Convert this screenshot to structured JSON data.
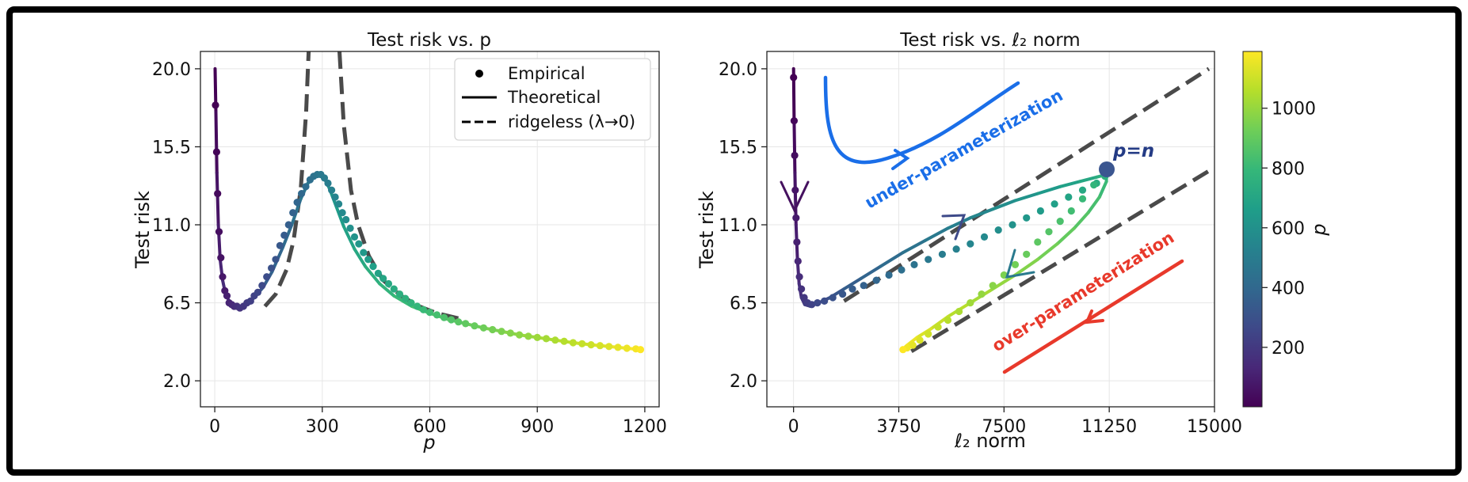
{
  "chart_data": [
    {
      "type": "line",
      "title": "Test risk vs. p",
      "xlabel": "p",
      "ylabel": "Test risk",
      "xlim": [
        -40,
        1240
      ],
      "ylim": [
        0.5,
        21
      ],
      "xticks": [
        0,
        300,
        600,
        900,
        1200
      ],
      "xtick_labels": [
        "0",
        "300",
        "600",
        "900",
        "1200"
      ],
      "yticks": [
        2.0,
        6.5,
        11.0,
        15.5,
        20.0
      ],
      "ytick_labels": [
        "2.0",
        "6.5",
        "11.0",
        "15.5",
        "20.0"
      ],
      "grid": true,
      "legend": {
        "placement": "top-right",
        "entries": [
          "Empirical",
          "Theoretical",
          "ridgeless (λ→0)"
        ]
      },
      "series": [
        {
          "name": "Theoretical",
          "style": "solid",
          "x": [
            1,
            3,
            6,
            10,
            15,
            22,
            30,
            40,
            55,
            70,
            90,
            110,
            135,
            160,
            190,
            215,
            240,
            260,
            280,
            292,
            305,
            320,
            340,
            360,
            390,
            420,
            460,
            500,
            550,
            600,
            650,
            700,
            750,
            800,
            850,
            900,
            950,
            1000,
            1050,
            1100,
            1150,
            1190
          ],
          "y": [
            20.0,
            17.5,
            14.0,
            11.0,
            9.0,
            7.8,
            7.0,
            6.6,
            6.3,
            6.2,
            6.4,
            6.8,
            7.4,
            8.3,
            9.7,
            11.0,
            12.5,
            13.4,
            13.8,
            13.9,
            13.7,
            13.1,
            12.0,
            10.9,
            9.6,
            8.6,
            7.6,
            6.9,
            6.3,
            5.9,
            5.55,
            5.3,
            5.05,
            4.85,
            4.65,
            4.5,
            4.35,
            4.2,
            4.08,
            3.98,
            3.88,
            3.8
          ]
        },
        {
          "name": "Empirical",
          "style": "points",
          "x": [
            2,
            5,
            8,
            12,
            17,
            22,
            28,
            34,
            40,
            47,
            54,
            62,
            70,
            80,
            90,
            100,
            110,
            120,
            132,
            145,
            158,
            170,
            182,
            194,
            206,
            218,
            230,
            242,
            254,
            266,
            276,
            286,
            296,
            306,
            316,
            326,
            336,
            346,
            356,
            366,
            378,
            390,
            402,
            415,
            428,
            442,
            456,
            470,
            485,
            500,
            516,
            532,
            548,
            565,
            582,
            600,
            620,
            640,
            660,
            680,
            700,
            725,
            750,
            775,
            800,
            825,
            850,
            875,
            900,
            925,
            950,
            975,
            1000,
            1025,
            1050,
            1075,
            1100,
            1125,
            1150,
            1175,
            1188
          ],
          "y": [
            17.9,
            15.2,
            12.8,
            10.6,
            9.1,
            8.0,
            7.2,
            6.9,
            6.5,
            6.4,
            6.3,
            6.3,
            6.2,
            6.3,
            6.5,
            6.6,
            6.9,
            7.1,
            7.5,
            8.0,
            8.5,
            9.0,
            9.8,
            10.4,
            11.0,
            11.7,
            12.3,
            12.8,
            13.2,
            13.6,
            13.8,
            13.9,
            13.9,
            13.7,
            13.4,
            13.0,
            12.6,
            12.2,
            11.7,
            11.3,
            10.8,
            10.3,
            9.9,
            9.4,
            9.0,
            8.6,
            8.2,
            7.9,
            7.6,
            7.3,
            7.0,
            6.75,
            6.5,
            6.3,
            6.1,
            5.95,
            5.8,
            5.65,
            5.52,
            5.4,
            5.3,
            5.17,
            5.05,
            4.95,
            4.85,
            4.75,
            4.65,
            4.57,
            4.5,
            4.43,
            4.35,
            4.28,
            4.2,
            4.14,
            4.08,
            4.03,
            3.98,
            3.93,
            3.88,
            3.84,
            3.8
          ]
        },
        {
          "name": "ridgeless (λ→0)",
          "style": "dashed",
          "branches": [
            {
              "x": [
                140,
                170,
                200,
                220,
                240,
                255,
                262
              ],
              "y": [
                6.3,
                7.0,
                8.4,
                10.1,
                13.1,
                17.5,
                21
              ]
            },
            {
              "x": [
                348,
                360,
                380,
                400,
                430,
                470,
                520,
                570,
                620,
                680
              ],
              "y": [
                21,
                16.8,
                13.0,
                11.0,
                9.2,
                7.8,
                6.9,
                6.3,
                5.9,
                5.6
              ]
            }
          ]
        }
      ]
    },
    {
      "type": "line",
      "title": "Test risk vs. ℓ₂ norm",
      "xlabel": "ℓ₂ norm",
      "ylabel": "Test risk",
      "xlim": [
        -950,
        15000
      ],
      "ylim": [
        0.5,
        21
      ],
      "xticks": [
        0,
        3750,
        7500,
        11250,
        15000
      ],
      "xtick_labels": [
        "0",
        "3750",
        "7500",
        "11250",
        "15000"
      ],
      "yticks": [
        2.0,
        6.5,
        11.0,
        15.5,
        20.0
      ],
      "ytick_labels": [
        "2.0",
        "6.5",
        "11.0",
        "15.5",
        "20.0"
      ],
      "grid": true,
      "colorbar": {
        "label": "p",
        "ticks": [
          200,
          400,
          600,
          800,
          1000
        ],
        "tick_labels": [
          "200",
          "400",
          "600",
          "800",
          "1000"
        ],
        "range": [
          1,
          1190
        ],
        "colormap": [
          "#440154",
          "#482878",
          "#3e4989",
          "#31688e",
          "#26828e",
          "#1f9e89",
          "#35b779",
          "#6ece58",
          "#b5de2b",
          "#fde725"
        ]
      },
      "annotations": [
        {
          "text": "under-parameterization",
          "color": "#1a6ee8"
        },
        {
          "text": "over-parameterization",
          "color": "#e8392b"
        },
        {
          "text": "p=n",
          "color": "#243b85"
        }
      ],
      "series": [
        {
          "name": "Theoretical",
          "style": "solid",
          "x": [
            0,
            20,
            50,
            90,
            140,
            200,
            280,
            400,
            600,
            900,
            1300,
            1800,
            2400,
            3100,
            3900,
            4700,
            5500,
            6300,
            7100,
            7900,
            8700,
            9500,
            10200,
            10800,
            11150,
            11150,
            10900,
            10500,
            10000,
            9400,
            8700,
            7900,
            7000,
            6200,
            5500,
            4900,
            4400,
            4050,
            3900
          ],
          "y": [
            20.0,
            17.0,
            14.0,
            11.0,
            9.0,
            7.6,
            6.8,
            6.4,
            6.3,
            6.5,
            6.8,
            7.3,
            7.9,
            8.6,
            9.4,
            10.1,
            10.8,
            11.4,
            11.9,
            12.4,
            12.8,
            13.2,
            13.5,
            13.75,
            13.9,
            13.5,
            12.6,
            11.7,
            10.8,
            9.9,
            9.0,
            8.1,
            7.2,
            6.4,
            5.7,
            5.0,
            4.5,
            4.05,
            3.8
          ]
        },
        {
          "name": "Empirical",
          "style": "points",
          "x": [
            0,
            20,
            40,
            60,
            90,
            120,
            160,
            210,
            280,
            380,
            500,
            650,
            850,
            1100,
            1400,
            1750,
            2100,
            2500,
            2950,
            3400,
            3850,
            4300,
            4800,
            5300,
            5800,
            6300,
            6800,
            7300,
            7800,
            8300,
            8800,
            9300,
            9800,
            10300,
            10800,
            11100,
            10700,
            10300,
            9900,
            9500,
            9100,
            8700,
            8300,
            7900,
            7500,
            7100,
            6700,
            6300,
            5900,
            5500,
            5150,
            4800,
            4500,
            4250,
            4050,
            3900
          ],
          "y": [
            19.5,
            17.0,
            15.0,
            13.0,
            11.4,
            10.0,
            8.9,
            8.0,
            7.3,
            6.8,
            6.5,
            6.4,
            6.5,
            6.6,
            6.8,
            7.0,
            7.3,
            7.5,
            7.8,
            8.1,
            8.4,
            8.7,
            9.0,
            9.3,
            9.6,
            9.9,
            10.3,
            10.7,
            11.0,
            11.4,
            11.8,
            12.2,
            12.6,
            13.0,
            13.4,
            13.8,
            13.3,
            12.5,
            11.8,
            11.2,
            10.6,
            10.0,
            9.3,
            8.7,
            8.1,
            7.5,
            7.0,
            6.5,
            6.0,
            5.5,
            5.1,
            4.7,
            4.35,
            4.05,
            3.9,
            3.8
          ]
        },
        {
          "name": "ridgeless (λ→0)",
          "style": "dashed",
          "branches": [
            {
              "x": [
                1800,
                14800
              ],
              "y": [
                6.6,
                20.0
              ]
            },
            {
              "x": [
                4200,
                15000
              ],
              "y": [
                3.7,
                14.3
              ]
            }
          ]
        }
      ]
    }
  ]
}
